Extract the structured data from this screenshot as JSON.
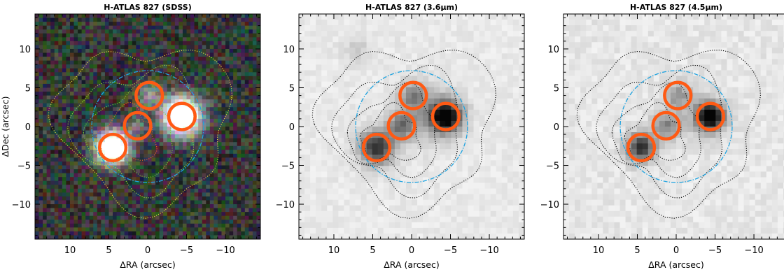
{
  "panels": [
    {
      "title": "H-ATLAS 827 (SDSS)",
      "style": "rgb",
      "show_ylabel": true,
      "show_ytick_labels": true
    },
    {
      "title": "H-ATLAS 827 (3.6μm)",
      "style": "gray36",
      "show_ylabel": false,
      "show_ytick_labels": true
    },
    {
      "title": "H-ATLAS 827 (4.5μm)",
      "style": "gray45",
      "show_ylabel": false,
      "show_ytick_labels": true
    }
  ],
  "axes": {
    "xlabel": "ΔRA (arcsec)",
    "ylabel": "ΔDec (arcsec)",
    "xlim": [
      14.5,
      -14.5
    ],
    "ylim": [
      -14.5,
      14.5
    ],
    "xticks": [
      {
        "value": 10,
        "label": "10"
      },
      {
        "value": 5,
        "label": "5"
      },
      {
        "value": 0,
        "label": "0"
      },
      {
        "value": -5,
        "label": "−5"
      },
      {
        "value": -10,
        "label": "−10"
      }
    ],
    "yticks": [
      {
        "value": 10,
        "label": "10"
      },
      {
        "value": 5,
        "label": "5"
      },
      {
        "value": 0,
        "label": "0"
      },
      {
        "value": -5,
        "label": "−5"
      },
      {
        "value": -10,
        "label": "−10"
      }
    ]
  },
  "sources": [
    {
      "ra": 4.5,
      "dec": -2.7
    },
    {
      "ra": 1.3,
      "dec": 0.1
    },
    {
      "ra": -0.2,
      "dec": 4.0
    },
    {
      "ra": -4.4,
      "dec": 1.3
    }
  ],
  "source_marker": {
    "radius_arcsec": 1.7,
    "color": "#ff5a14"
  },
  "beam": {
    "ra": 0.0,
    "dec": 0.0,
    "radius_arcsec": 7.2,
    "color": "#1fa3e0"
  },
  "contour_colors": {
    "rgb": [
      "#e8e040",
      "#a8e038",
      "#7ed030",
      "#f06a20"
    ],
    "gray": "#000000"
  }
}
